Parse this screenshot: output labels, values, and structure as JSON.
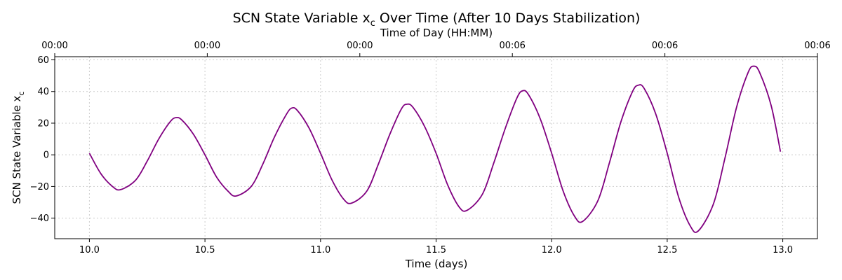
{
  "chart_data": {
    "type": "line",
    "title": "SCN State Variable x",
    "title_subscript": "c",
    "title_suffix": " Over Time (After 10 Days Stabilization)",
    "xlabel": "Time (days)",
    "ylabel": "SCN State Variable x",
    "ylabel_subscript": "c",
    "secondary_xlabel": "Time of Day (HH:MM)",
    "xlim": [
      9.85,
      13.15
    ],
    "ylim": [
      -53,
      62
    ],
    "x_ticks": [
      10.0,
      10.5,
      11.0,
      11.5,
      12.0,
      12.5,
      13.0
    ],
    "x_tick_labels": [
      "10.0",
      "10.5",
      "11.0",
      "11.5",
      "12.0",
      "12.5",
      "13.0"
    ],
    "y_ticks": [
      -40,
      -20,
      0,
      20,
      40,
      60
    ],
    "y_tick_labels": [
      "−40",
      "−20",
      "0",
      "20",
      "40",
      "60"
    ],
    "top_ticks": [
      9.85,
      10.51,
      11.17,
      11.83,
      12.49,
      13.15
    ],
    "top_tick_labels": [
      "00:00",
      "00:00",
      "00:00",
      "00:06",
      "00:06",
      "00:06"
    ],
    "grid": true,
    "line_color": "#800080",
    "series": [
      {
        "x": [
          10.0,
          10.05,
          10.1,
          10.135,
          10.2,
          10.25,
          10.3,
          10.35,
          10.375,
          10.4,
          10.45,
          10.5,
          10.55,
          10.6,
          10.635,
          10.7,
          10.75,
          10.8,
          10.85,
          10.875,
          10.9,
          10.95,
          11.0,
          11.05,
          11.1,
          11.135,
          11.2,
          11.25,
          11.3,
          11.35,
          11.375,
          11.4,
          11.45,
          11.5,
          11.55,
          11.6,
          11.635,
          11.7,
          11.75,
          11.8,
          11.85,
          11.875,
          11.9,
          11.95,
          12.0,
          12.05,
          12.1,
          12.135,
          12.2,
          12.25,
          12.3,
          12.35,
          12.375,
          12.4,
          12.45,
          12.5,
          12.55,
          12.6,
          12.635,
          12.7,
          12.75,
          12.8,
          12.85,
          12.875,
          12.9,
          12.95,
          12.99
        ],
        "y": [
          1,
          -12,
          -20,
          -22,
          -16,
          -4,
          10,
          21,
          23.5,
          22,
          13,
          0,
          -14,
          -23,
          -26,
          -20,
          -6,
          11,
          25,
          29.5,
          28,
          17,
          1,
          -16,
          -28,
          -30.5,
          -23,
          -6,
          13,
          29,
          32,
          30,
          18,
          1,
          -19,
          -33,
          -35,
          -25,
          -5,
          17,
          36,
          40.5,
          38,
          23,
          1,
          -23,
          -39,
          -42,
          -29,
          -5,
          21,
          40,
          44,
          42,
          26,
          1,
          -27,
          -45,
          -48,
          -31,
          -2,
          30,
          52,
          56,
          52,
          31,
          2
        ]
      }
    ]
  }
}
